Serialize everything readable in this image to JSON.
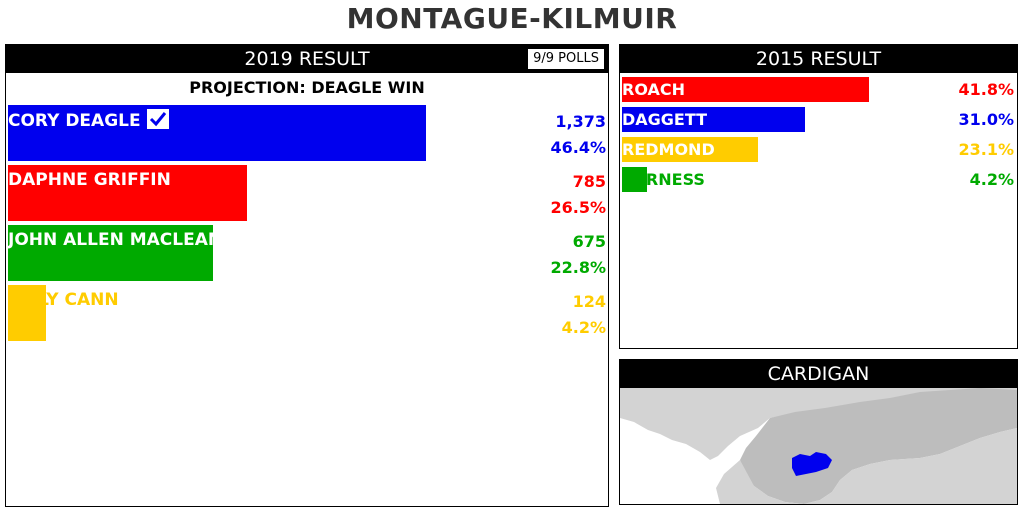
{
  "title": "MONTAGUE-KILMUIR",
  "result_2019": {
    "header": "2019 RESULT",
    "polls": "9/9 POLLS",
    "projection": "PROJECTION: DEAGLE WIN",
    "candidates": [
      {
        "name": "CORY DEAGLE",
        "votes": "1,373",
        "pct": "46.4%",
        "share": 46.4,
        "color": "#0000ee",
        "winner": true
      },
      {
        "name": "DAPHNE GRIFFIN",
        "votes": "785",
        "pct": "26.5%",
        "share": 26.5,
        "color": "#ff0000",
        "winner": false
      },
      {
        "name": "JOHN ALLEN MACLEAN",
        "votes": "675",
        "pct": "22.8%",
        "share": 22.8,
        "color": "#00aa00",
        "winner": false
      },
      {
        "name": "BILLY CANN",
        "votes": "124",
        "pct": "4.2%",
        "share": 4.2,
        "color": "#ffcc00",
        "winner": false
      }
    ]
  },
  "result_2015": {
    "header": "2015 RESULT",
    "candidates": [
      {
        "name": "ROACH",
        "pct": "41.8%",
        "share": 41.8,
        "color": "#ff0000"
      },
      {
        "name": "DAGGETT",
        "pct": "31.0%",
        "share": 31.0,
        "color": "#0000ee"
      },
      {
        "name": "REDMOND",
        "pct": "23.1%",
        "share": 23.1,
        "color": "#ffcc00"
      },
      {
        "name": "FURNESS",
        "pct": "4.2%",
        "share": 4.2,
        "color": "#00aa00"
      }
    ]
  },
  "map": {
    "header": "CARDIGAN",
    "land_color": "#d3d3d3",
    "region_color": "#bdbdbd",
    "highlight_color": "#0000ee"
  }
}
